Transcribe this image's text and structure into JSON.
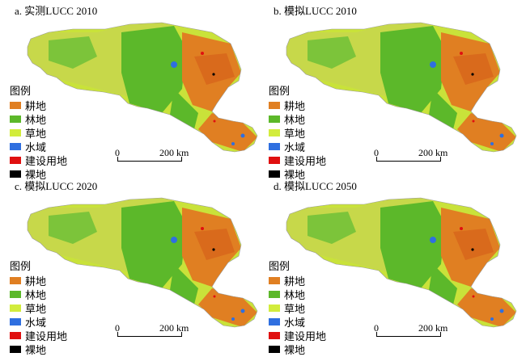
{
  "panels": [
    {
      "title": "a. 实测LUCC 2010"
    },
    {
      "title": "b. 模拟LUCC 2010"
    },
    {
      "title": "c. 模拟LUCC 2020"
    },
    {
      "title": "d. 模拟LUCC 2050"
    }
  ],
  "legend": {
    "title": "图例",
    "items": [
      {
        "label": "耕地",
        "color": "#e07f22"
      },
      {
        "label": "林地",
        "color": "#5cb82a"
      },
      {
        "label": "草地",
        "color": "#d2ec3c"
      },
      {
        "label": "水域",
        "color": "#2f6fe0"
      },
      {
        "label": "建设用地",
        "color": "#e01010"
      },
      {
        "label": "裸地",
        "color": "#000000"
      }
    ]
  },
  "scale": {
    "zero": "0",
    "distance": "200 km"
  }
}
